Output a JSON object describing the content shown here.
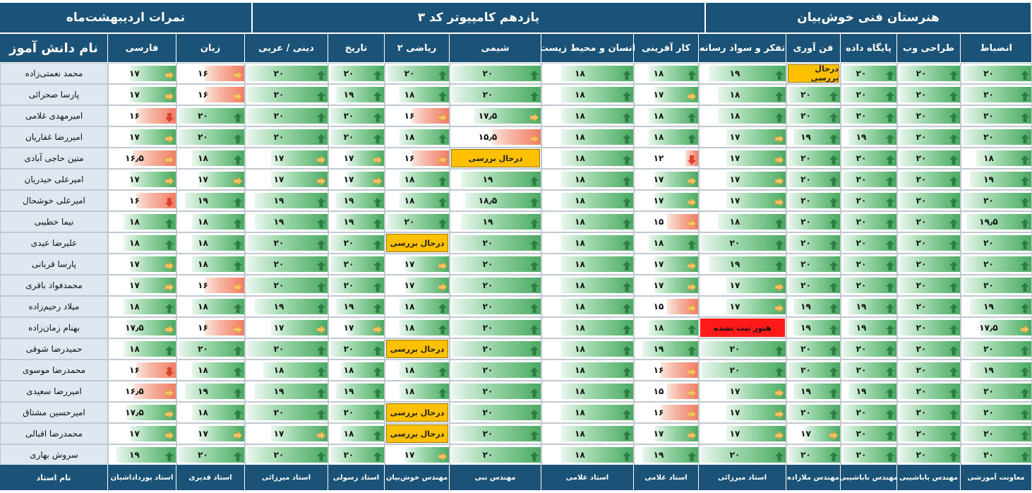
{
  "title_bar": {
    "nomarat": "نمرات اردیبهشت‌ماه",
    "class": "یازدهم کامپیوتر کد ۳",
    "school": "هنرستان فنی خوش‌بیان"
  },
  "name_header": "نام دانش آموز",
  "teacher_label": "نام استاد",
  "subjects": [
    {
      "label": "فارسی",
      "teacher": "استاد پورداداشیان"
    },
    {
      "label": "زبان",
      "teacher": "استاد قدیری"
    },
    {
      "label": "دینی / عربی",
      "teacher": "استاد میرزائی"
    },
    {
      "label": "تاریخ",
      "teacher": "استاد رسولی"
    },
    {
      "label": "ریاضی ۲",
      "teacher": "مهندس خوش‌بیان"
    },
    {
      "label": "شیمی",
      "teacher": "مهندس نبی"
    },
    {
      "label": "انسان و محیط زیست",
      "teacher": "استاد غلامی"
    },
    {
      "label": "کار آفرینی",
      "teacher": "استاد غلامی"
    },
    {
      "label": "تفکر و سواد رسانه",
      "teacher": "استاد میرزائی"
    },
    {
      "label": "فن آوری",
      "teacher": "مهندس ملازاده"
    },
    {
      "label": "پایگاه داده",
      "teacher": "مهندس باباشیبی"
    },
    {
      "label": "طراحی وب",
      "teacher": "مهندس باباشیبی"
    },
    {
      "label": "انضباط",
      "teacher": "معاونت آموزشی"
    }
  ],
  "status_labels": {
    "review": "درحال بررسی",
    "unregistered": "هنوز ثبت نشده"
  },
  "icon_legend": {
    "up": "arrow-up-icon",
    "side": "arrow-right-icon",
    "down": "hand-down-icon"
  },
  "students": [
    {
      "name": "محمد نعمتی‌زاده",
      "grades": [
        "۱۷",
        "۱۶",
        "۲۰",
        "۲۰",
        "۲۰",
        "۲۰",
        "۱۸",
        "۱۸",
        "۱۹",
        "درحال بررسی",
        "۲۰",
        "۲۰",
        "۲۰"
      ]
    },
    {
      "name": "پارسا صحرائی",
      "grades": [
        "۱۷",
        "۱۶",
        "۲۰",
        "۱۹",
        "۱۸",
        "۲۰",
        "۱۸",
        "۱۷",
        "۱۸",
        "۲۰",
        "۲۰",
        "۲۰",
        "۲۰"
      ]
    },
    {
      "name": "امیرمهدی غلامی",
      "grades": [
        "۱۶",
        "۲۰",
        "۲۰",
        "۲۰",
        "۱۶",
        "۱۷٫۵",
        "۱۸",
        "۱۸",
        "۱۸",
        "۲۰",
        "۲۰",
        "۲۰",
        "۲۰"
      ]
    },
    {
      "name": "امیررضا غفاریان",
      "grades": [
        "۱۷",
        "۲۰",
        "۲۰",
        "۲۰",
        "۱۸",
        "۱۵٫۵",
        "۱۸",
        "۱۸",
        "۱۷",
        "۱۹",
        "۱۹",
        "۲۰",
        "۲۰"
      ]
    },
    {
      "name": "متین حاجی آبادی",
      "grades": [
        "۱۶٫۵",
        "۱۸",
        "۱۷",
        "۱۷",
        "۱۶",
        "درحال بررسی",
        "۱۸",
        "۱۲",
        "۱۷",
        "۲۰",
        "۲۰",
        "۲۰",
        "۱۸"
      ]
    },
    {
      "name": "امیرعلی حیدریان",
      "grades": [
        "۱۷",
        "۱۷",
        "۱۷",
        "۱۷",
        "۱۸",
        "۱۹",
        "۱۸",
        "۱۷",
        "۱۷",
        "۲۰",
        "۲۰",
        "۲۰",
        "۱۹"
      ]
    },
    {
      "name": "امیرعلی خوشحال",
      "grades": [
        "۱۶",
        "۱۹",
        "۱۹",
        "۱۹",
        "۱۸",
        "۱۸٫۵",
        "۱۸",
        "۱۷",
        "۱۷",
        "۲۰",
        "۲۰",
        "۲۰",
        "۲۰"
      ]
    },
    {
      "name": "نیما خطیبی",
      "grades": [
        "۱۸",
        "۱۸",
        "۱۹",
        "۱۹",
        "۲۰",
        "۱۹",
        "۱۸",
        "۱۵",
        "۱۸",
        "۲۰",
        "۲۰",
        "۲۰",
        "۱۹٫۵"
      ]
    },
    {
      "name": "علیرضا عیدی",
      "grades": [
        "۱۸",
        "۱۸",
        "۲۰",
        "۲۰",
        "درحال بررسی",
        "۲۰",
        "۱۸",
        "۱۸",
        "۲۰",
        "۲۰",
        "۲۰",
        "۲۰",
        "۲۰"
      ]
    },
    {
      "name": "پارسا قربانی",
      "grades": [
        "۱۷",
        "۱۸",
        "۲۰",
        "۲۰",
        "۱۷",
        "۲۰",
        "۱۸",
        "۱۷",
        "۱۹",
        "۲۰",
        "۲۰",
        "۲۰",
        "۲۰"
      ]
    },
    {
      "name": "محمدفواد باقری",
      "grades": [
        "۱۷",
        "۱۶",
        "۲۰",
        "۲۰",
        "۱۷",
        "۲۰",
        "۱۸",
        "۱۷",
        "۱۷",
        "۲۰",
        "۲۰",
        "۲۰",
        "۲۰"
      ]
    },
    {
      "name": "میلاد رحیم‌زاده",
      "grades": [
        "۱۸",
        "۱۸",
        "۱۹",
        "۱۹",
        "۱۸",
        "۲۰",
        "۱۸",
        "۱۵",
        "۱۷",
        "۱۹",
        "۱۹",
        "۲۰",
        "۱۹"
      ]
    },
    {
      "name": "بهنام زمان‌زاده",
      "grades": [
        "۱۷٫۵",
        "۱۶",
        "۱۷",
        "۱۷",
        "۱۸",
        "۲۰",
        "۱۸",
        "۱۸",
        "هنوز ثبت نشده",
        "۱۹",
        "۱۹",
        "۲۰",
        "۱۷٫۵"
      ]
    },
    {
      "name": "حمیدرضا شوقی",
      "grades": [
        "۱۸",
        "۲۰",
        "۲۰",
        "۲۰",
        "درحال بررسی",
        "۲۰",
        "۱۸",
        "۱۹",
        "۲۰",
        "۲۰",
        "۲۰",
        "۲۰",
        "۲۰"
      ]
    },
    {
      "name": "محمدرضا موسوی",
      "grades": [
        "۱۶",
        "۱۸",
        "۱۸",
        "۱۸",
        "۱۸",
        "۲۰",
        "۱۸",
        "۱۶",
        "۲۰",
        "۲۰",
        "۲۰",
        "۲۰",
        "۱۹"
      ]
    },
    {
      "name": "امیررضا سعیدی",
      "grades": [
        "۱۶٫۵",
        "۱۹",
        "۱۹",
        "۱۹",
        "۱۸",
        "۲۰",
        "۱۸",
        "۱۵",
        "۱۷",
        "۱۹",
        "۱۹",
        "۲۰",
        "۲۰"
      ]
    },
    {
      "name": "امیرحسین مشتاق",
      "grades": [
        "۱۷٫۵",
        "۱۸",
        "۲۰",
        "۲۰",
        "درحال بررسی",
        "۲۰",
        "۱۸",
        "۱۶",
        "۱۷",
        "۲۰",
        "۲۰",
        "۲۰",
        "۲۰"
      ]
    },
    {
      "name": "محمدرضا اقبالی",
      "grades": [
        "۱۷",
        "۱۷",
        "۱۷",
        "۱۸",
        "درحال بررسی",
        "۲۰",
        "۱۸",
        "۱۷",
        "۱۷",
        "۱۷",
        "۲۰",
        "۲۰",
        "۲۰"
      ]
    },
    {
      "name": "سروش بهاری",
      "grades": [
        "۱۹",
        "۲۰",
        "۲۰",
        "۲۰",
        "۱۷",
        "۲۰",
        "۱۸",
        "۱۹",
        "۲۰",
        "۲۰",
        "۲۰",
        "۲۰",
        "۲۰"
      ]
    }
  ]
}
